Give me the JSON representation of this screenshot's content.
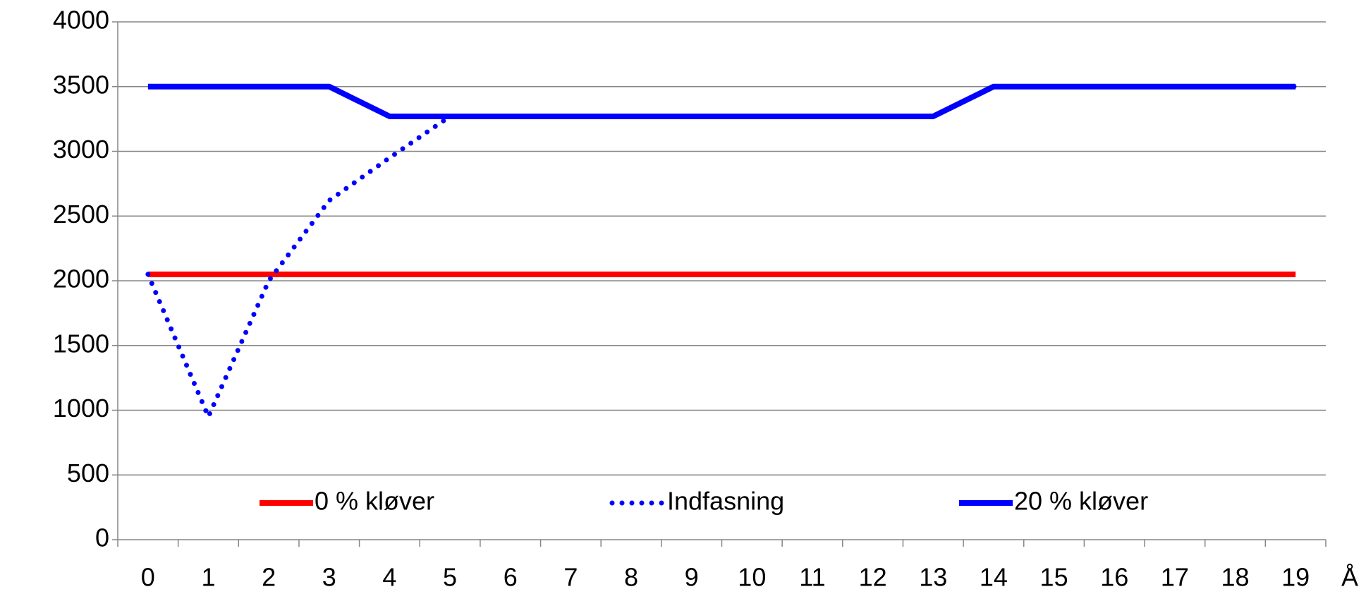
{
  "chart_data": {
    "type": "line",
    "x_label": "Å",
    "categories": [
      "0",
      "1",
      "2",
      "3",
      "4",
      "5",
      "6",
      "7",
      "8",
      "9",
      "10",
      "11",
      "12",
      "13",
      "14",
      "15",
      "16",
      "17",
      "18",
      "19"
    ],
    "series": [
      {
        "name": "0 % kløver",
        "color": "#ff0000",
        "style": "solid",
        "values": [
          2050,
          2050,
          2050,
          2050,
          2050,
          2050,
          2050,
          2050,
          2050,
          2050,
          2050,
          2050,
          2050,
          2050,
          2050,
          2050,
          2050,
          2050,
          2050,
          2050
        ]
      },
      {
        "name": "Indfasning",
        "color": "#0000ff",
        "style": "dotted",
        "values": [
          2050,
          950,
          2000,
          2620,
          2950,
          3270,
          3270,
          3270,
          3270,
          3270,
          3270,
          3270,
          3270,
          3270,
          3500,
          3500,
          3500,
          3500,
          3500,
          3500
        ]
      },
      {
        "name": "20 % kløver",
        "color": "#0000ff",
        "style": "solid",
        "values": [
          3500,
          3500,
          3500,
          3500,
          3270,
          3270,
          3270,
          3270,
          3270,
          3270,
          3270,
          3270,
          3270,
          3270,
          3500,
          3500,
          3500,
          3500,
          3500,
          3500
        ]
      }
    ],
    "ylim": [
      0,
      4000
    ],
    "yticks": [
      0,
      500,
      1000,
      1500,
      2000,
      2500,
      3000,
      3500,
      4000
    ],
    "grid": true,
    "legend": "bottom"
  }
}
